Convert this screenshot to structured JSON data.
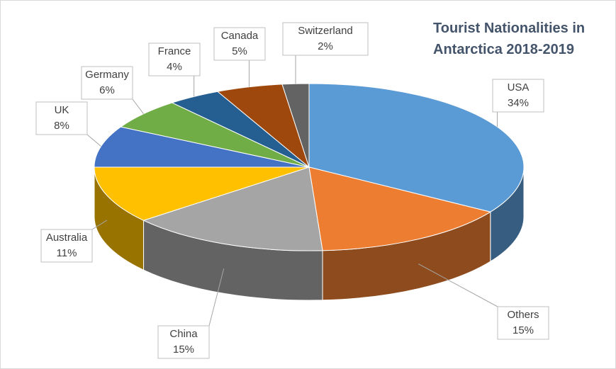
{
  "chart_data": {
    "type": "pie3d",
    "title": "Tourist Nationalities in Antarctica 2018-2019",
    "categories": [
      "USA",
      "Others",
      "China",
      "Australia",
      "UK",
      "Germany",
      "France",
      "Canada",
      "Switzerland"
    ],
    "values": [
      34,
      15,
      15,
      11,
      8,
      6,
      4,
      5,
      2
    ],
    "value_labels": [
      "34%",
      "15%",
      "15%",
      "11%",
      "8%",
      "6%",
      "4%",
      "5%",
      "2%"
    ],
    "colors": [
      "#5b9bd5",
      "#ed7d31",
      "#a5a5a5",
      "#ffc000",
      "#4472c4",
      "#70ad47",
      "#255e91",
      "#9e480e",
      "#636363"
    ]
  }
}
